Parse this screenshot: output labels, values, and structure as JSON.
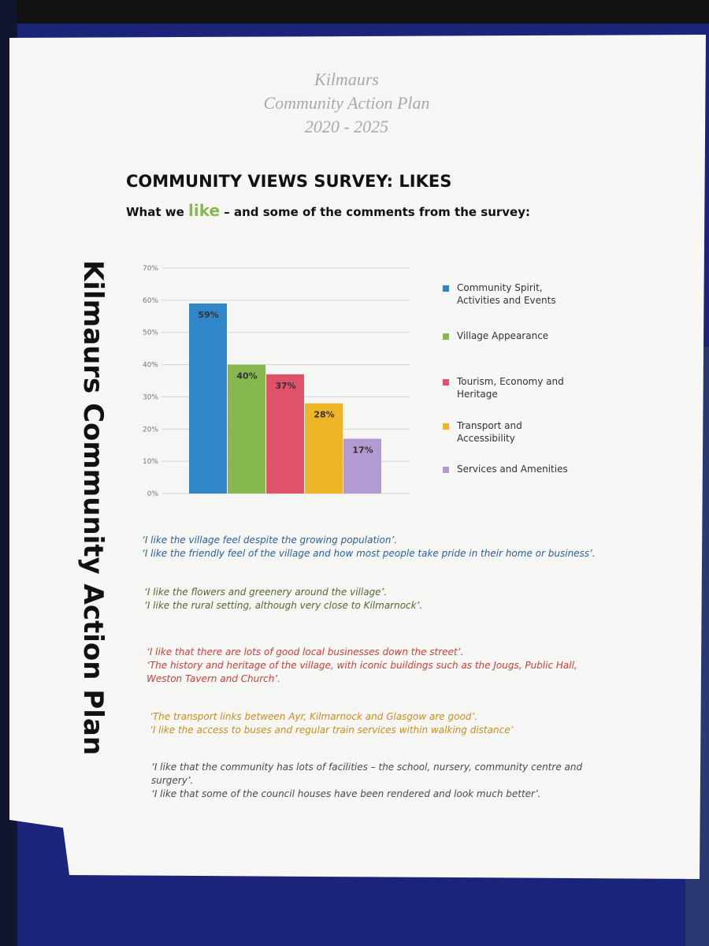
{
  "header": {
    "title_lines": [
      "Kilmaurs",
      "Community Action Plan",
      "2020 - 2025"
    ],
    "heading": "COMMUNITY VIEWS SURVEY: LIKES",
    "subheading": [
      "What we ",
      "like",
      " – and some of the comments from the survey:"
    ]
  },
  "side_text": "Kilmaurs Community Action Plan",
  "chart_data": {
    "type": "bar",
    "categories": [
      "Community Spirit, Activities and Events",
      "Village Appearance",
      "Tourism, Economy and Heritage",
      "Transport and Accessibility",
      "Services and Amenities"
    ],
    "values": [
      59,
      40,
      37,
      28,
      17
    ],
    "value_labels": [
      "59%",
      "40%",
      "37%",
      "28%",
      "17%"
    ],
    "colors": [
      "#2f86c9",
      "#86b84f",
      "#e0516a",
      "#f0b429",
      "#b39ad0"
    ],
    "ylim": [
      0,
      70
    ],
    "yticks": [
      {
        "value": 0,
        "label": "0%"
      },
      {
        "value": 10,
        "label": "10%"
      },
      {
        "value": 20,
        "label": "20%"
      },
      {
        "value": 30,
        "label": "30%"
      },
      {
        "value": 40,
        "label": "40%"
      },
      {
        "value": 50,
        "label": "50%"
      },
      {
        "value": 60,
        "label": "60%"
      },
      {
        "value": 70,
        "label": "70%"
      }
    ],
    "grid": true,
    "legend": "right"
  },
  "comments": [
    {
      "color": "#2c5f9e",
      "lines": [
        "‘I like the village feel despite the growing population’.",
        "‘I like the friendly feel of the village and how most people take pride in their home or business’."
      ]
    },
    {
      "color": "#4f6b2c",
      "lines": [
        "‘I like the flowers and greenery around the village’.",
        "‘I like the rural setting, although very close to Kilmarnock’."
      ]
    },
    {
      "color": "#c8433b",
      "lines": [
        "‘I like that there are lots of good local businesses down the street’.",
        "‘The history and heritage of the village, with iconic buildings such as the Jougs, Public Hall,",
        "Weston Tavern and Church’."
      ]
    },
    {
      "color": "#c98f1f",
      "lines": [
        "‘The transport links between Ayr, Kilmarnock and Glasgow are good’.",
        "‘I like the access to buses and regular train services within walking distance’"
      ]
    },
    {
      "color": "#4a4a4a",
      "lines": [
        "‘I like that the community has lots of facilities – the school, nursery, community centre and",
        "surgery’.",
        "‘I like that some of the council houses have been rendered and look much better’."
      ]
    }
  ]
}
